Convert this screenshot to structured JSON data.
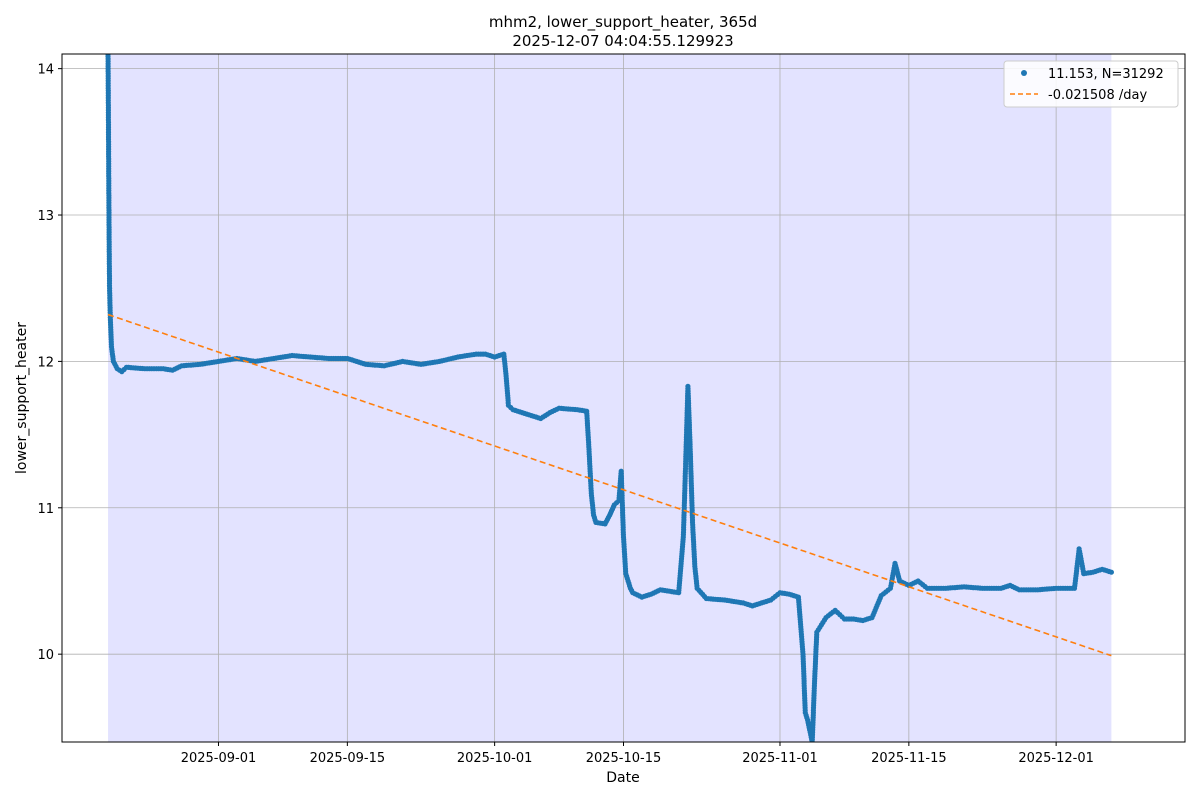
{
  "chart_data": {
    "type": "scatter",
    "title_line1": "mhm2, lower_support_heater, 365d",
    "title_line2": "2025-12-07 04:04:55.129923",
    "xlabel": "Date",
    "ylabel": "lower_support_heater",
    "x_range": [
      "2025-08-15",
      "2025-12-15"
    ],
    "ylim": [
      9.4,
      14.1
    ],
    "grid": true,
    "legend_position": "top-right",
    "x_ticks": [
      "2025-09-01",
      "2025-09-15",
      "2025-10-01",
      "2025-10-15",
      "2025-11-01",
      "2025-11-15",
      "2025-12-01"
    ],
    "y_ticks": [
      10,
      11,
      12,
      13,
      14
    ],
    "shaded_span": [
      "2025-08-20",
      "2025-12-07"
    ],
    "colors": {
      "series": "#1f77b4",
      "trend": "#ff7f0e",
      "span": "#e3e3ff",
      "grid": "#b0b0b0"
    },
    "series": [
      {
        "name": "11.153, N=31292",
        "style": "points",
        "points": [
          [
            "2025-08-20T00:00",
            14.1
          ],
          [
            "2025-08-20T01:00",
            13.7
          ],
          [
            "2025-08-20T02:00",
            13.2
          ],
          [
            "2025-08-20T03:00",
            12.8
          ],
          [
            "2025-08-20T04:00",
            12.5
          ],
          [
            "2025-08-20T06:00",
            12.3
          ],
          [
            "2025-08-20T09:00",
            12.1
          ],
          [
            "2025-08-20T14:00",
            12.0
          ],
          [
            "2025-08-21T00:00",
            11.95
          ],
          [
            "2025-08-21T12:00",
            11.93
          ],
          [
            "2025-08-22",
            11.96
          ],
          [
            "2025-08-24",
            11.95
          ],
          [
            "2025-08-26",
            11.95
          ],
          [
            "2025-08-27",
            11.94
          ],
          [
            "2025-08-28",
            11.97
          ],
          [
            "2025-08-30",
            11.98
          ],
          [
            "2025-09-01",
            12.0
          ],
          [
            "2025-09-03",
            12.02
          ],
          [
            "2025-09-05",
            12.0
          ],
          [
            "2025-09-07",
            12.02
          ],
          [
            "2025-09-09",
            12.04
          ],
          [
            "2025-09-11",
            12.03
          ],
          [
            "2025-09-13",
            12.02
          ],
          [
            "2025-09-15",
            12.02
          ],
          [
            "2025-09-17",
            11.98
          ],
          [
            "2025-09-19",
            11.97
          ],
          [
            "2025-09-21",
            12.0
          ],
          [
            "2025-09-23",
            11.98
          ],
          [
            "2025-09-25",
            12.0
          ],
          [
            "2025-09-27",
            12.03
          ],
          [
            "2025-09-29",
            12.05
          ],
          [
            "2025-09-30",
            12.05
          ],
          [
            "2025-10-01",
            12.03
          ],
          [
            "2025-10-02",
            12.05
          ],
          [
            "2025-10-02T06:00",
            11.9
          ],
          [
            "2025-10-02T12:00",
            11.7
          ],
          [
            "2025-10-03",
            11.67
          ],
          [
            "2025-10-05",
            11.63
          ],
          [
            "2025-10-06",
            11.61
          ],
          [
            "2025-10-07",
            11.65
          ],
          [
            "2025-10-08",
            11.68
          ],
          [
            "2025-10-10",
            11.67
          ],
          [
            "2025-10-11",
            11.66
          ],
          [
            "2025-10-11T06:00",
            11.4
          ],
          [
            "2025-10-11T12:00",
            11.1
          ],
          [
            "2025-10-11T18:00",
            10.95
          ],
          [
            "2025-10-12",
            10.9
          ],
          [
            "2025-10-13",
            10.89
          ],
          [
            "2025-10-13T12:00",
            10.95
          ],
          [
            "2025-10-14",
            11.02
          ],
          [
            "2025-10-14T12:00",
            11.05
          ],
          [
            "2025-10-14T18:00",
            11.25
          ],
          [
            "2025-10-15",
            10.8
          ],
          [
            "2025-10-15T06:00",
            10.55
          ],
          [
            "2025-10-15T18:00",
            10.45
          ],
          [
            "2025-10-16",
            10.42
          ],
          [
            "2025-10-17",
            10.39
          ],
          [
            "2025-10-18",
            10.41
          ],
          [
            "2025-10-19",
            10.44
          ],
          [
            "2025-10-20",
            10.43
          ],
          [
            "2025-10-21",
            10.42
          ],
          [
            "2025-10-21T12:00",
            10.8
          ],
          [
            "2025-10-21T18:00",
            11.3
          ],
          [
            "2025-10-22",
            11.83
          ],
          [
            "2025-10-22T06:00",
            11.4
          ],
          [
            "2025-10-22T12:00",
            10.9
          ],
          [
            "2025-10-22T18:00",
            10.6
          ],
          [
            "2025-10-23",
            10.45
          ],
          [
            "2025-10-24",
            10.38
          ],
          [
            "2025-10-26",
            10.37
          ],
          [
            "2025-10-28",
            10.35
          ],
          [
            "2025-10-29",
            10.33
          ],
          [
            "2025-10-30",
            10.35
          ],
          [
            "2025-10-31",
            10.37
          ],
          [
            "2025-11-01",
            10.42
          ],
          [
            "2025-11-02",
            10.41
          ],
          [
            "2025-11-03",
            10.39
          ],
          [
            "2025-11-03T12:00",
            10.0
          ],
          [
            "2025-11-03T18:00",
            9.6
          ],
          [
            "2025-11-04",
            9.55
          ],
          [
            "2025-11-04T12:00",
            9.4
          ],
          [
            "2025-11-04T18:00",
            9.8
          ],
          [
            "2025-11-05",
            10.15
          ],
          [
            "2025-11-06",
            10.25
          ],
          [
            "2025-11-07",
            10.3
          ],
          [
            "2025-11-08",
            10.24
          ],
          [
            "2025-11-09",
            10.24
          ],
          [
            "2025-11-10",
            10.23
          ],
          [
            "2025-11-11",
            10.25
          ],
          [
            "2025-11-12",
            10.4
          ],
          [
            "2025-11-13",
            10.45
          ],
          [
            "2025-11-13T12:00",
            10.62
          ],
          [
            "2025-11-14",
            10.5
          ],
          [
            "2025-11-15",
            10.47
          ],
          [
            "2025-11-16",
            10.5
          ],
          [
            "2025-11-17",
            10.45
          ],
          [
            "2025-11-19",
            10.45
          ],
          [
            "2025-11-21",
            10.46
          ],
          [
            "2025-11-23",
            10.45
          ],
          [
            "2025-11-25",
            10.45
          ],
          [
            "2025-11-26",
            10.47
          ],
          [
            "2025-11-27",
            10.44
          ],
          [
            "2025-11-29",
            10.44
          ],
          [
            "2025-12-01",
            10.45
          ],
          [
            "2025-12-03",
            10.45
          ],
          [
            "2025-12-03T12:00",
            10.72
          ],
          [
            "2025-12-04",
            10.55
          ],
          [
            "2025-12-05",
            10.56
          ],
          [
            "2025-12-06",
            10.58
          ],
          [
            "2025-12-07",
            10.56
          ]
        ]
      },
      {
        "name": "-0.021508 /day",
        "style": "dashed-line",
        "points": [
          [
            "2025-08-20",
            12.32
          ],
          [
            "2025-12-07",
            9.99
          ]
        ]
      }
    ]
  }
}
